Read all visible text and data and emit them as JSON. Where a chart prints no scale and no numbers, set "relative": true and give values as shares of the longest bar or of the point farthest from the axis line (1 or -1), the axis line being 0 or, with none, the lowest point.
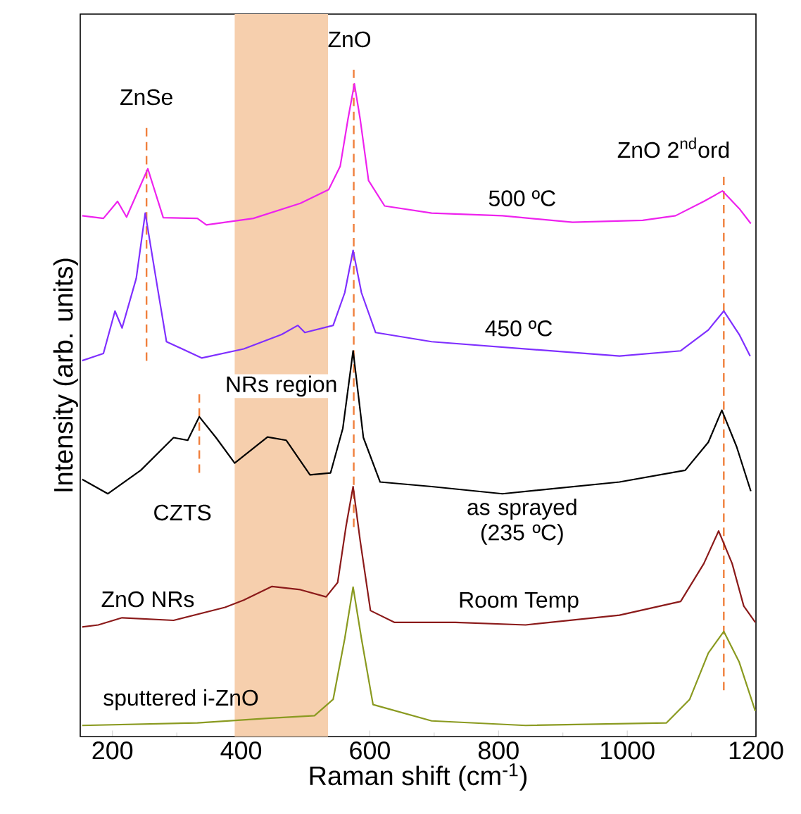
{
  "chart_data": {
    "type": "line",
    "relative": true,
    "xlabel": "Raman shift (cm$^{-1}$)",
    "ylabel": "Intensity (arb. units)",
    "xlim": [
      150,
      1200
    ],
    "xticks": [
      200,
      400,
      600,
      800,
      1000,
      1200
    ],
    "series": [
      {
        "name": "500 ºC",
        "color": "#ee22ee",
        "x": [
          153,
          186,
          208,
          222,
          255,
          279,
          332,
          346,
          419,
          492,
          536,
          554,
          566,
          576,
          585,
          598,
          623,
          696,
          806,
          915,
          1024,
          1075,
          1119,
          1148,
          1174,
          1192
        ],
        "values": [
          0.798,
          0.794,
          0.82,
          0.796,
          0.87,
          0.795,
          0.794,
          0.784,
          0.794,
          0.817,
          0.838,
          0.874,
          0.946,
          1.0,
          0.946,
          0.852,
          0.813,
          0.802,
          0.798,
          0.788,
          0.791,
          0.798,
          0.82,
          0.836,
          0.809,
          0.786
        ]
      },
      {
        "name": "450 ºC",
        "color": "#7f2fff",
        "x": [
          153,
          186,
          204,
          215,
          237,
          251,
          270,
          284,
          339,
          404,
          463,
          488,
          499,
          543,
          561,
          574,
          587,
          609,
          696,
          842,
          988,
          1083,
          1126,
          1150,
          1174,
          1191
        ],
        "values": [
          0.576,
          0.587,
          0.652,
          0.626,
          0.702,
          0.802,
          0.688,
          0.605,
          0.58,
          0.594,
          0.616,
          0.63,
          0.619,
          0.63,
          0.68,
          0.745,
          0.68,
          0.619,
          0.605,
          0.594,
          0.583,
          0.591,
          0.623,
          0.652,
          0.616,
          0.583
        ]
      },
      {
        "name": "as sprayed (235 ºC)",
        "color": "#000000",
        "x": [
          153,
          193,
          244,
          295,
          317,
          335,
          361,
          390,
          441,
          470,
          507,
          539,
          558,
          574,
          590,
          616,
          696,
          806,
          988,
          1090,
          1126,
          1147,
          1170,
          1192
        ],
        "values": [
          0.394,
          0.372,
          0.408,
          0.458,
          0.454,
          0.49,
          0.458,
          0.419,
          0.459,
          0.454,
          0.401,
          0.404,
          0.472,
          0.591,
          0.458,
          0.39,
          0.383,
          0.372,
          0.39,
          0.408,
          0.451,
          0.5,
          0.444,
          0.376
        ]
      },
      {
        "name": "ZnO NRs",
        "color": "#8b1a1a",
        "x": [
          153,
          178,
          215,
          295,
          375,
          404,
          448,
          492,
          532,
          550,
          563,
          574,
          585,
          601,
          638,
          733,
          842,
          988,
          1083,
          1119,
          1142,
          1163,
          1181,
          1199
        ],
        "values": [
          0.168,
          0.171,
          0.182,
          0.178,
          0.198,
          0.209,
          0.23,
          0.225,
          0.214,
          0.236,
          0.322,
          0.383,
          0.3,
          0.193,
          0.175,
          0.175,
          0.171,
          0.186,
          0.207,
          0.265,
          0.315,
          0.265,
          0.2,
          0.175
        ]
      },
      {
        "name": "sputtered i-ZnO",
        "color": "#8a9a20",
        "x": [
          153,
          332,
          441,
          514,
          543,
          561,
          574,
          587,
          605,
          696,
          842,
          1061,
          1097,
          1126,
          1150,
          1174,
          1199
        ],
        "values": [
          0.017,
          0.021,
          0.028,
          0.032,
          0.057,
          0.15,
          0.229,
          0.15,
          0.049,
          0.024,
          0.017,
          0.021,
          0.057,
          0.128,
          0.161,
          0.114,
          0.039
        ]
      }
    ],
    "ref_lines": [
      {
        "axis": "x",
        "value": 253,
        "label": "ZnSe",
        "color": "#f07f3c",
        "line_style": "dashed"
      },
      {
        "axis": "x",
        "value": 335,
        "label": "CZTS",
        "color": "#f07f3c",
        "line_style": "dashed"
      },
      {
        "axis": "x",
        "value": 575,
        "label": "ZnO",
        "color": "#f07f3c",
        "line_style": "dashed"
      },
      {
        "axis": "x",
        "value": 1150,
        "label": "ZnO 2$^{nd}$ord",
        "color": "#f07f3c",
        "line_style": "dashed"
      }
    ],
    "bands": [
      {
        "axis": "x",
        "from": 390,
        "to": 535,
        "label": "NRs region",
        "color": "#f6cfad"
      }
    ],
    "annotations": [
      "Room Temp"
    ]
  }
}
